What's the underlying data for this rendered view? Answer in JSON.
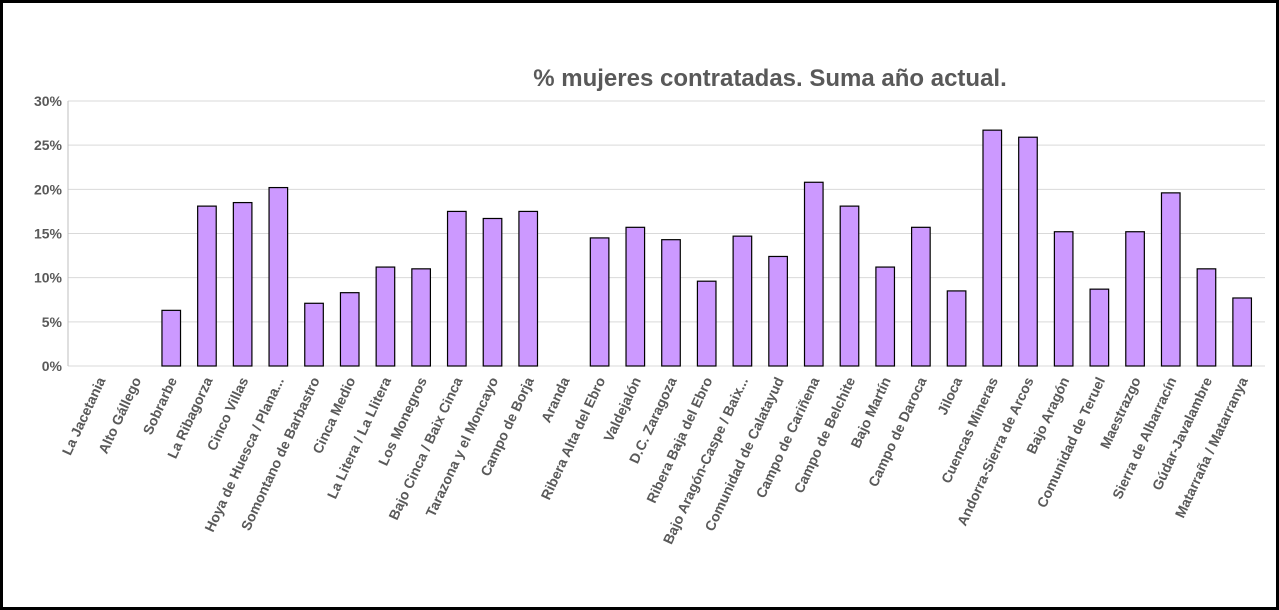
{
  "chart_data": {
    "type": "bar",
    "title": "% mujeres contratadas. Suma año actual.",
    "categories": [
      "La Jacetania",
      "Alto Gállego",
      "Sobrarbe",
      "La Ribagorza",
      "Cinco Villas",
      "Hoya de Huesca / Plana...",
      "Somontano de Barbastro",
      "Cinca Medio",
      "La Litera / La Llitera",
      "Los Monegros",
      "Bajo Cinca / Baix Cinca",
      "Tarazona y el Moncayo",
      "Campo de Borja",
      "Aranda",
      "Ribera Alta del Ebro",
      "Valdejalón",
      "D.C. Zaragoza",
      "Ribera Baja del Ebro",
      "Bajo Aragón-Caspe / Baix...",
      "Comunidad de Calatayud",
      "Campo de Cariñena",
      "Campo de Belchite",
      "Bajo Martín",
      "Campo de Daroca",
      "Jiloca",
      "Cuencas Mineras",
      "Andorra-Sierra de Arcos",
      "Bajo Aragón",
      "Comunidad de Teruel",
      "Maestrazgo",
      "Sierra de Albarracín",
      "Gúdar-Javalambre",
      "Matarraña / Matarranya"
    ],
    "values": [
      0,
      0,
      6.3,
      18.1,
      18.5,
      20.2,
      7.1,
      8.3,
      11.2,
      11.0,
      17.5,
      16.7,
      17.5,
      0,
      14.5,
      15.7,
      14.3,
      9.6,
      14.7,
      12.4,
      20.8,
      18.1,
      11.2,
      15.7,
      8.5,
      26.7,
      25.9,
      15.2,
      8.7,
      15.2,
      19.6,
      11.0,
      7.7
    ],
    "color": "#cc99ff",
    "ylim": [
      0,
      30
    ],
    "yticks": [
      {
        "value": 0,
        "label": "0%"
      },
      {
        "value": 5,
        "label": "5%"
      },
      {
        "value": 10,
        "label": "10%"
      },
      {
        "value": 15,
        "label": "15%"
      },
      {
        "value": 20,
        "label": "20%"
      },
      {
        "value": 25,
        "label": "25%"
      },
      {
        "value": 30,
        "label": "30%"
      }
    ],
    "grid": true
  }
}
